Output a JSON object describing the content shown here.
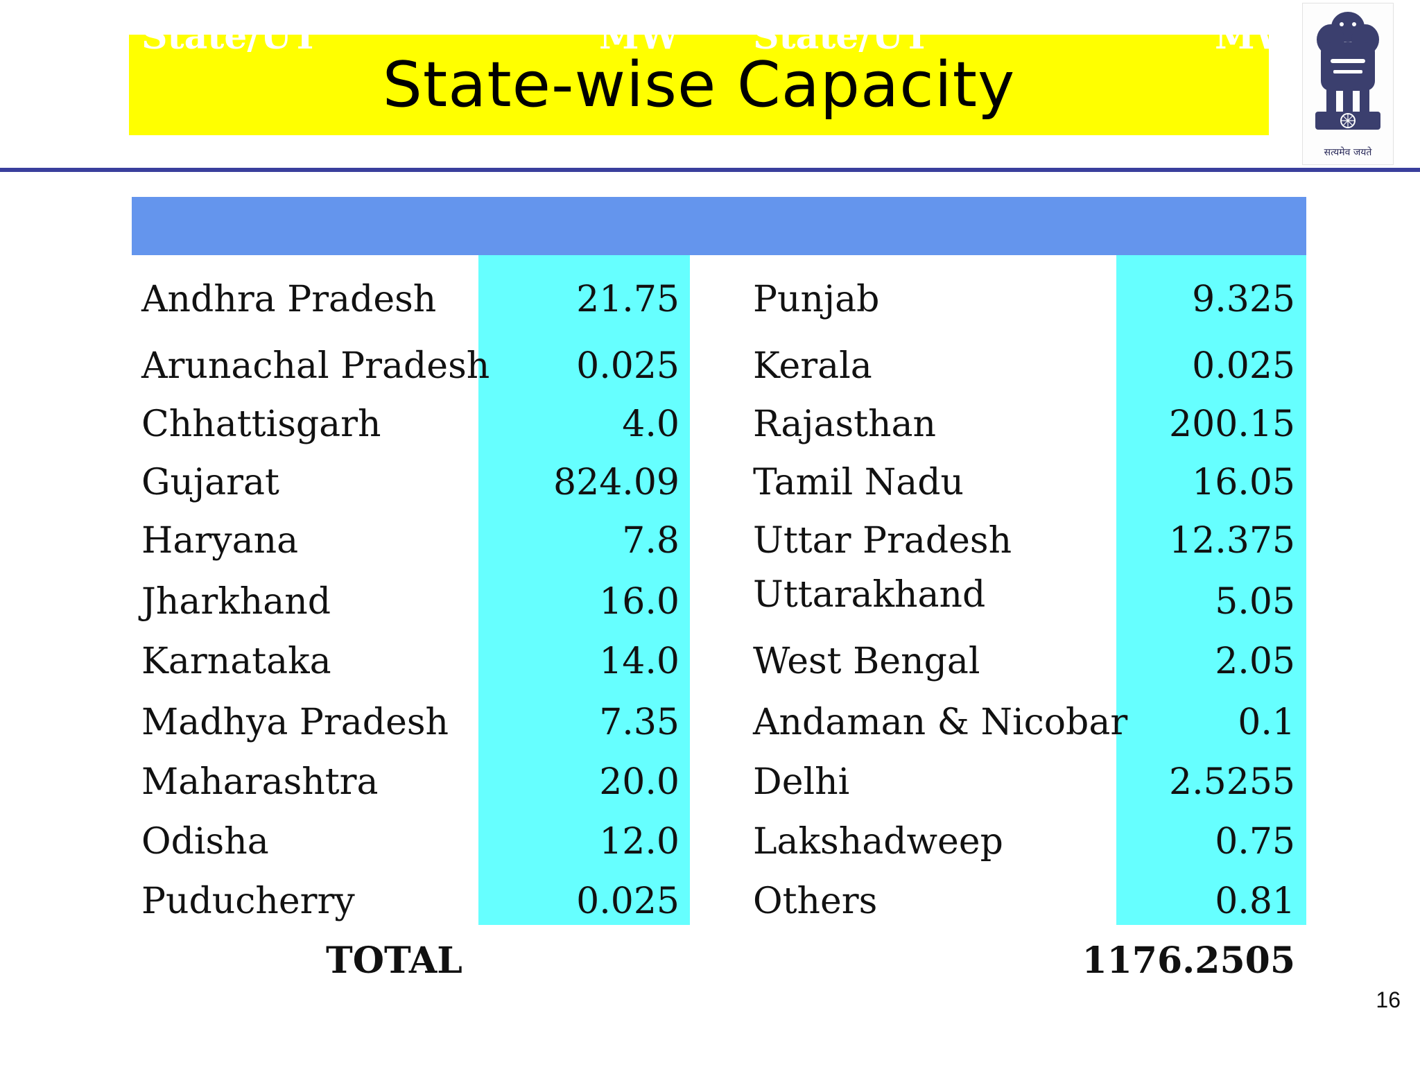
{
  "slide": {
    "title": "State-wise Capacity",
    "page_number": "16",
    "emblem_motto": "सत्यमेव जयते"
  },
  "colors": {
    "title_band": "#ffff00",
    "header_fill": "#6495ed",
    "value_column_fill": "#66ffff",
    "divider_line": "#3a3f9c"
  },
  "table": {
    "headers": {
      "left_state": "State/UT",
      "left_mw": "MW",
      "right_state": "State/UT",
      "right_mw": "MW"
    },
    "left_rows": [
      {
        "state": "Andhra Pradesh",
        "mw": "21.75"
      },
      {
        "state": "Arunachal Pradesh",
        "mw": "0.025"
      },
      {
        "state": "Chhattisgarh",
        "mw": "4.0"
      },
      {
        "state": "Gujarat",
        "mw": "824.09"
      },
      {
        "state": "Haryana",
        "mw": "7.8"
      },
      {
        "state": "Jharkhand",
        "mw": "16.0"
      },
      {
        "state": "Karnataka",
        "mw": "14.0"
      },
      {
        "state": "Madhya Pradesh",
        "mw": "7.35"
      },
      {
        "state": "Maharashtra",
        "mw": "20.0"
      },
      {
        "state": "Odisha",
        "mw": "12.0"
      },
      {
        "state": "Puducherry",
        "mw": "0.025"
      }
    ],
    "right_rows": [
      {
        "state": "Punjab",
        "mw": "9.325"
      },
      {
        "state": "Kerala",
        "mw": "0.025"
      },
      {
        "state": "Rajasthan",
        "mw": "200.15"
      },
      {
        "state": "Tamil Nadu",
        "mw": "16.05"
      },
      {
        "state": "Uttar Pradesh",
        "mw": "12.375"
      },
      {
        "state": "Uttarakhand",
        "mw": "5.05"
      },
      {
        "state": "West Bengal",
        "mw": "2.05"
      },
      {
        "state": "Andaman & Nicobar",
        "mw": "0.1"
      },
      {
        "state": "Delhi",
        "mw": "2.5255"
      },
      {
        "state": "Lakshadweep",
        "mw": "0.75"
      },
      {
        "state": "Others",
        "mw": "0.81"
      }
    ],
    "total_label": "TOTAL",
    "total_value": "1176.2505"
  }
}
